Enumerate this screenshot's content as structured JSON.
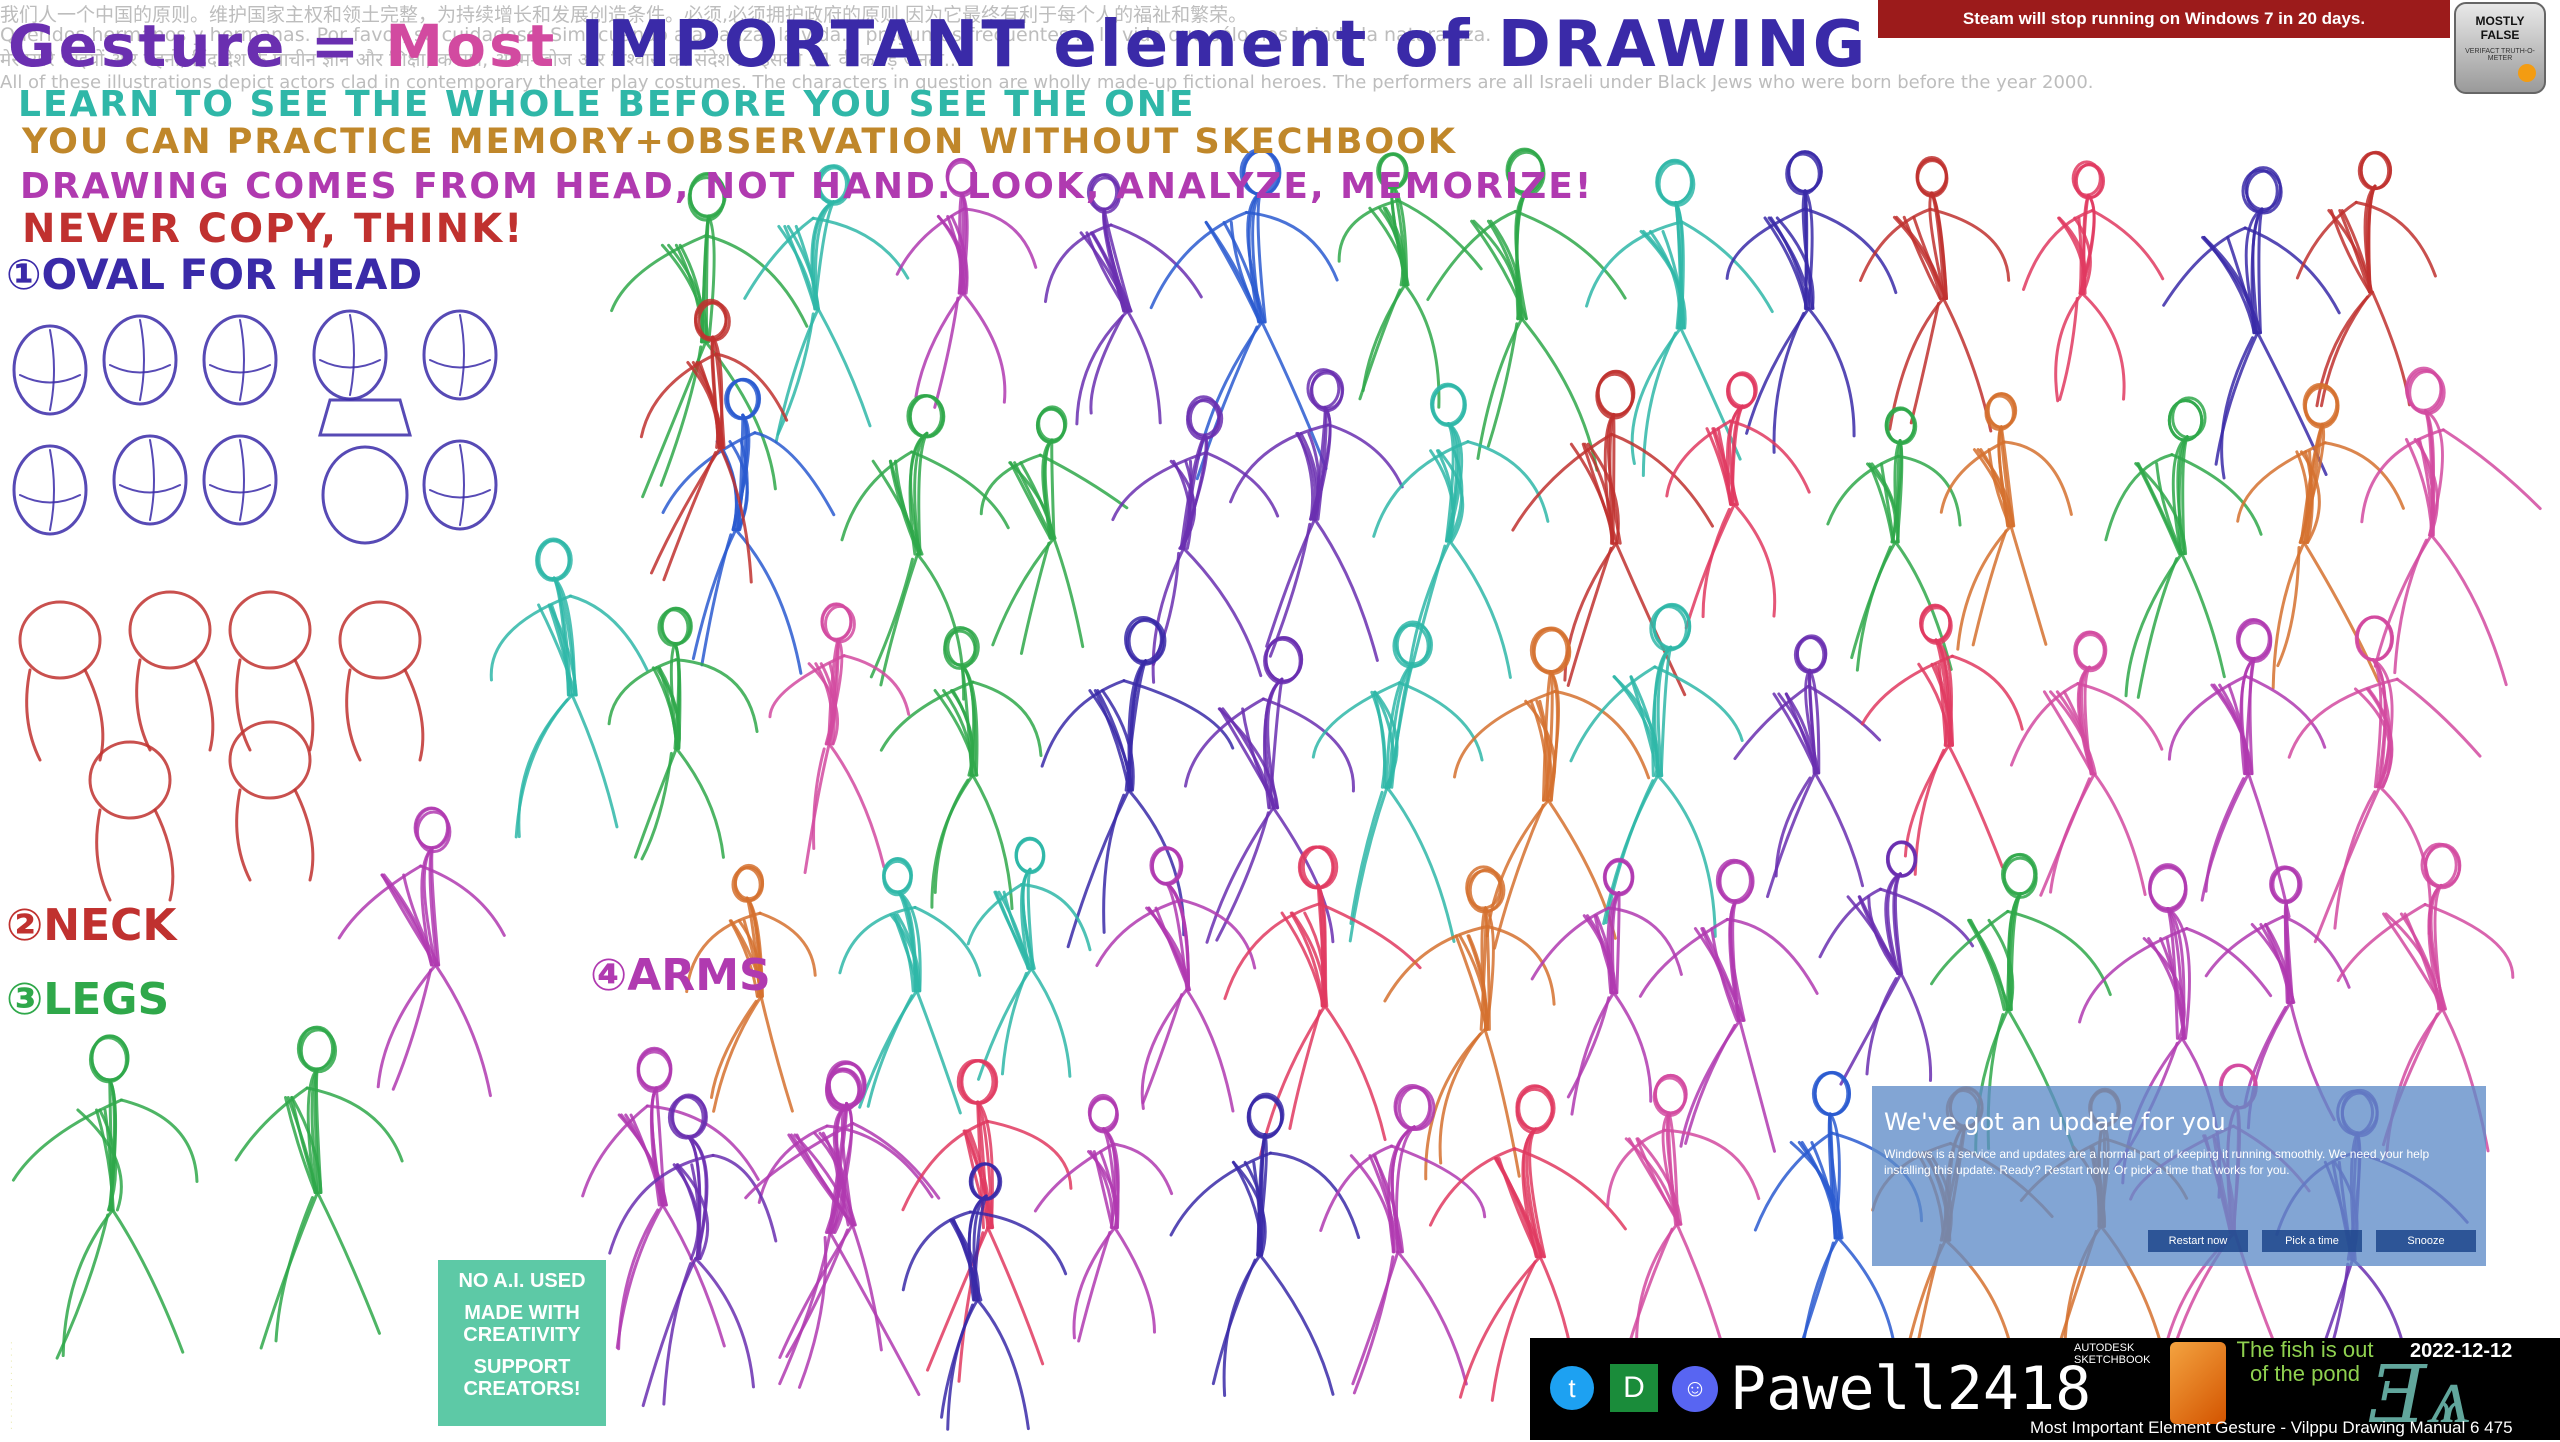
{
  "header": {
    "title_part1": "Gesture = ",
    "title_part2": "Most ",
    "title_part3": "IMPORTANT element of DRAWING"
  },
  "background_text": [
    "我们人一个中国的原则。维护国家主权和领土完整，为持续增长和发展创造条件。必须,必须拥护政府的原则,因为它最终有利于每个人的福祉和繁荣。",
    "Queridos hermanos y hermanas. Por favor, sé cuidadoso. Sim, cuando a alcanzar la vida... preguntas frecuentes ... la vida que sólo nos brinda la naturaleza.",
    "मेरे प्यारे भाइयों और बहनों, हिंद देश के प्राचीन ज्ञान और शिक्षा, करुणा, आत्म-खोज और विश्वास का संदेश ... इसकी 31 वीं करोड़ जनता...",
    "All of these illustrations depict actors clad in contemporary theater play costumes. The characters in question are wholly made-up fictional heroes. The performers are all Israeli under Black Jews who were born before the year 2000."
  ],
  "notes": {
    "line1": "LEARN TO SEE THE WHOLE BEFORE YOU SEE THE ONE",
    "line2": "YOU CAN PRACTICE MEMORY+OBSERVATION WITHOUT SKECHBOOK",
    "line3": "DRAWING COMES FROM HEAD, NOT HAND. LOOK, ANALYZE, MEMORIZE!",
    "line4": "NEVER COPY, THINK!",
    "step1": "①OVAL FOR HEAD",
    "step2": "②NECK",
    "step3": "③LEGS",
    "step4": "④ARMS"
  },
  "notification": {
    "text": "Steam will stop running on Windows 7 in 20 days."
  },
  "badge": {
    "label": "MOSTLY FALSE",
    "sublabel": "VERIFACT TRUTH-O-METER"
  },
  "update_dialog": {
    "heading": "We've got an update for you",
    "body": "Windows is a service and updates are a normal part of keeping it running smoothly. We need your help installing this update. Ready? Restart now. Or pick a time that works for you.",
    "buttons": [
      "Restart now",
      "Pick a time",
      "Snooze"
    ]
  },
  "stream_bar": {
    "twitter_icon": "twitter-icon",
    "deviantart_icon": "deviantart-icon",
    "discord_icon": "discord-icon",
    "username": "Pawell2418",
    "app_name": "AUTODESK SKETCHBOOK",
    "fish_text": "The fish is out of the pond",
    "date": "2022-12-12",
    "caption": "Most Important Element Gesture - Vilppu Drawing Manual 6 475"
  },
  "no_ai_box": {
    "line1": "NO A.I. USED",
    "line2": "MADE WITH CREATIVITY",
    "line3": "SUPPORT CREATORS!"
  },
  "colors": {
    "purple": "#6a2fb0",
    "pink": "#d24aa0",
    "navy": "#3a2aa8",
    "teal": "#2fb7a8",
    "green": "#2fa84a",
    "red": "#c0312f",
    "orange": "#d5712f",
    "magenta": "#b03ab0",
    "steam_red": "#9c1b1b",
    "noai_green": "#5dc9a6"
  }
}
